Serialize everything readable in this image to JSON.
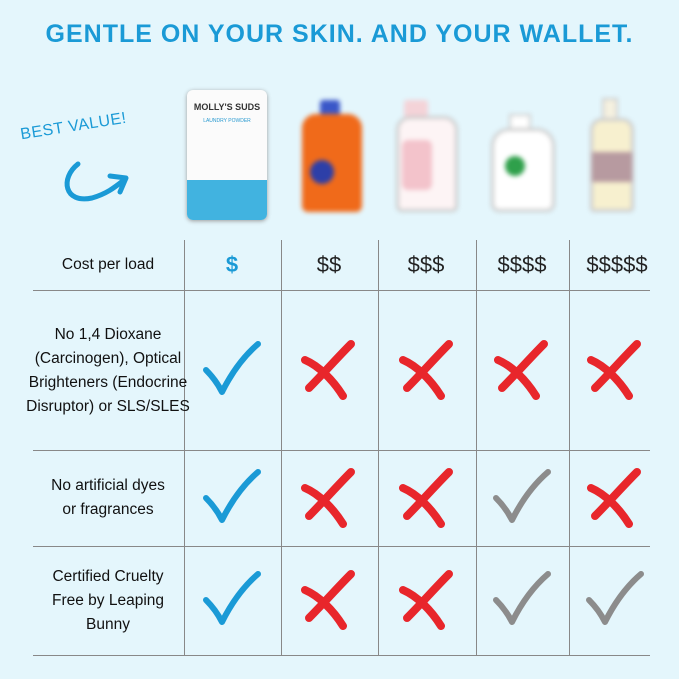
{
  "headline": "GENTLE ON YOUR SKIN. AND YOUR WALLET.",
  "badge": "BEST VALUE!",
  "products": [
    {
      "name": "Molly's Suds Laundry Powder",
      "brand_text": "MOLLY'S SUDS",
      "sub_text": "LAUNDRY POWDER",
      "blurred": false
    },
    {
      "name": "competitor-orange",
      "blurred": true
    },
    {
      "name": "competitor-pink",
      "blurred": true
    },
    {
      "name": "competitor-white-green",
      "blurred": true
    },
    {
      "name": "competitor-cream",
      "blurred": true
    }
  ],
  "rows": [
    {
      "label": "Cost per load",
      "values": [
        "$",
        "$$",
        "$$$",
        "$$$$",
        "$$$$$"
      ]
    },
    {
      "label": "No 1,4 Dioxane (Carcinogen), Optical Brighteners (Endocrine Disruptor) or SLS/SLES",
      "values": [
        "check-blue",
        "x-red",
        "x-red",
        "x-red",
        "x-red"
      ]
    },
    {
      "label": "No artificial dyes or fragrances",
      "values": [
        "check-blue",
        "x-red",
        "x-red",
        "check-gray",
        "x-red"
      ]
    },
    {
      "label": "Certified Cruelty Free by Leaping Bunny",
      "values": [
        "check-blue",
        "x-red",
        "x-red",
        "check-gray",
        "check-gray"
      ]
    }
  ],
  "colors": {
    "accent": "#1a9ad6",
    "x": "#e8262b",
    "gray_check": "#8c8c8c",
    "background": "#e4f6fc"
  }
}
